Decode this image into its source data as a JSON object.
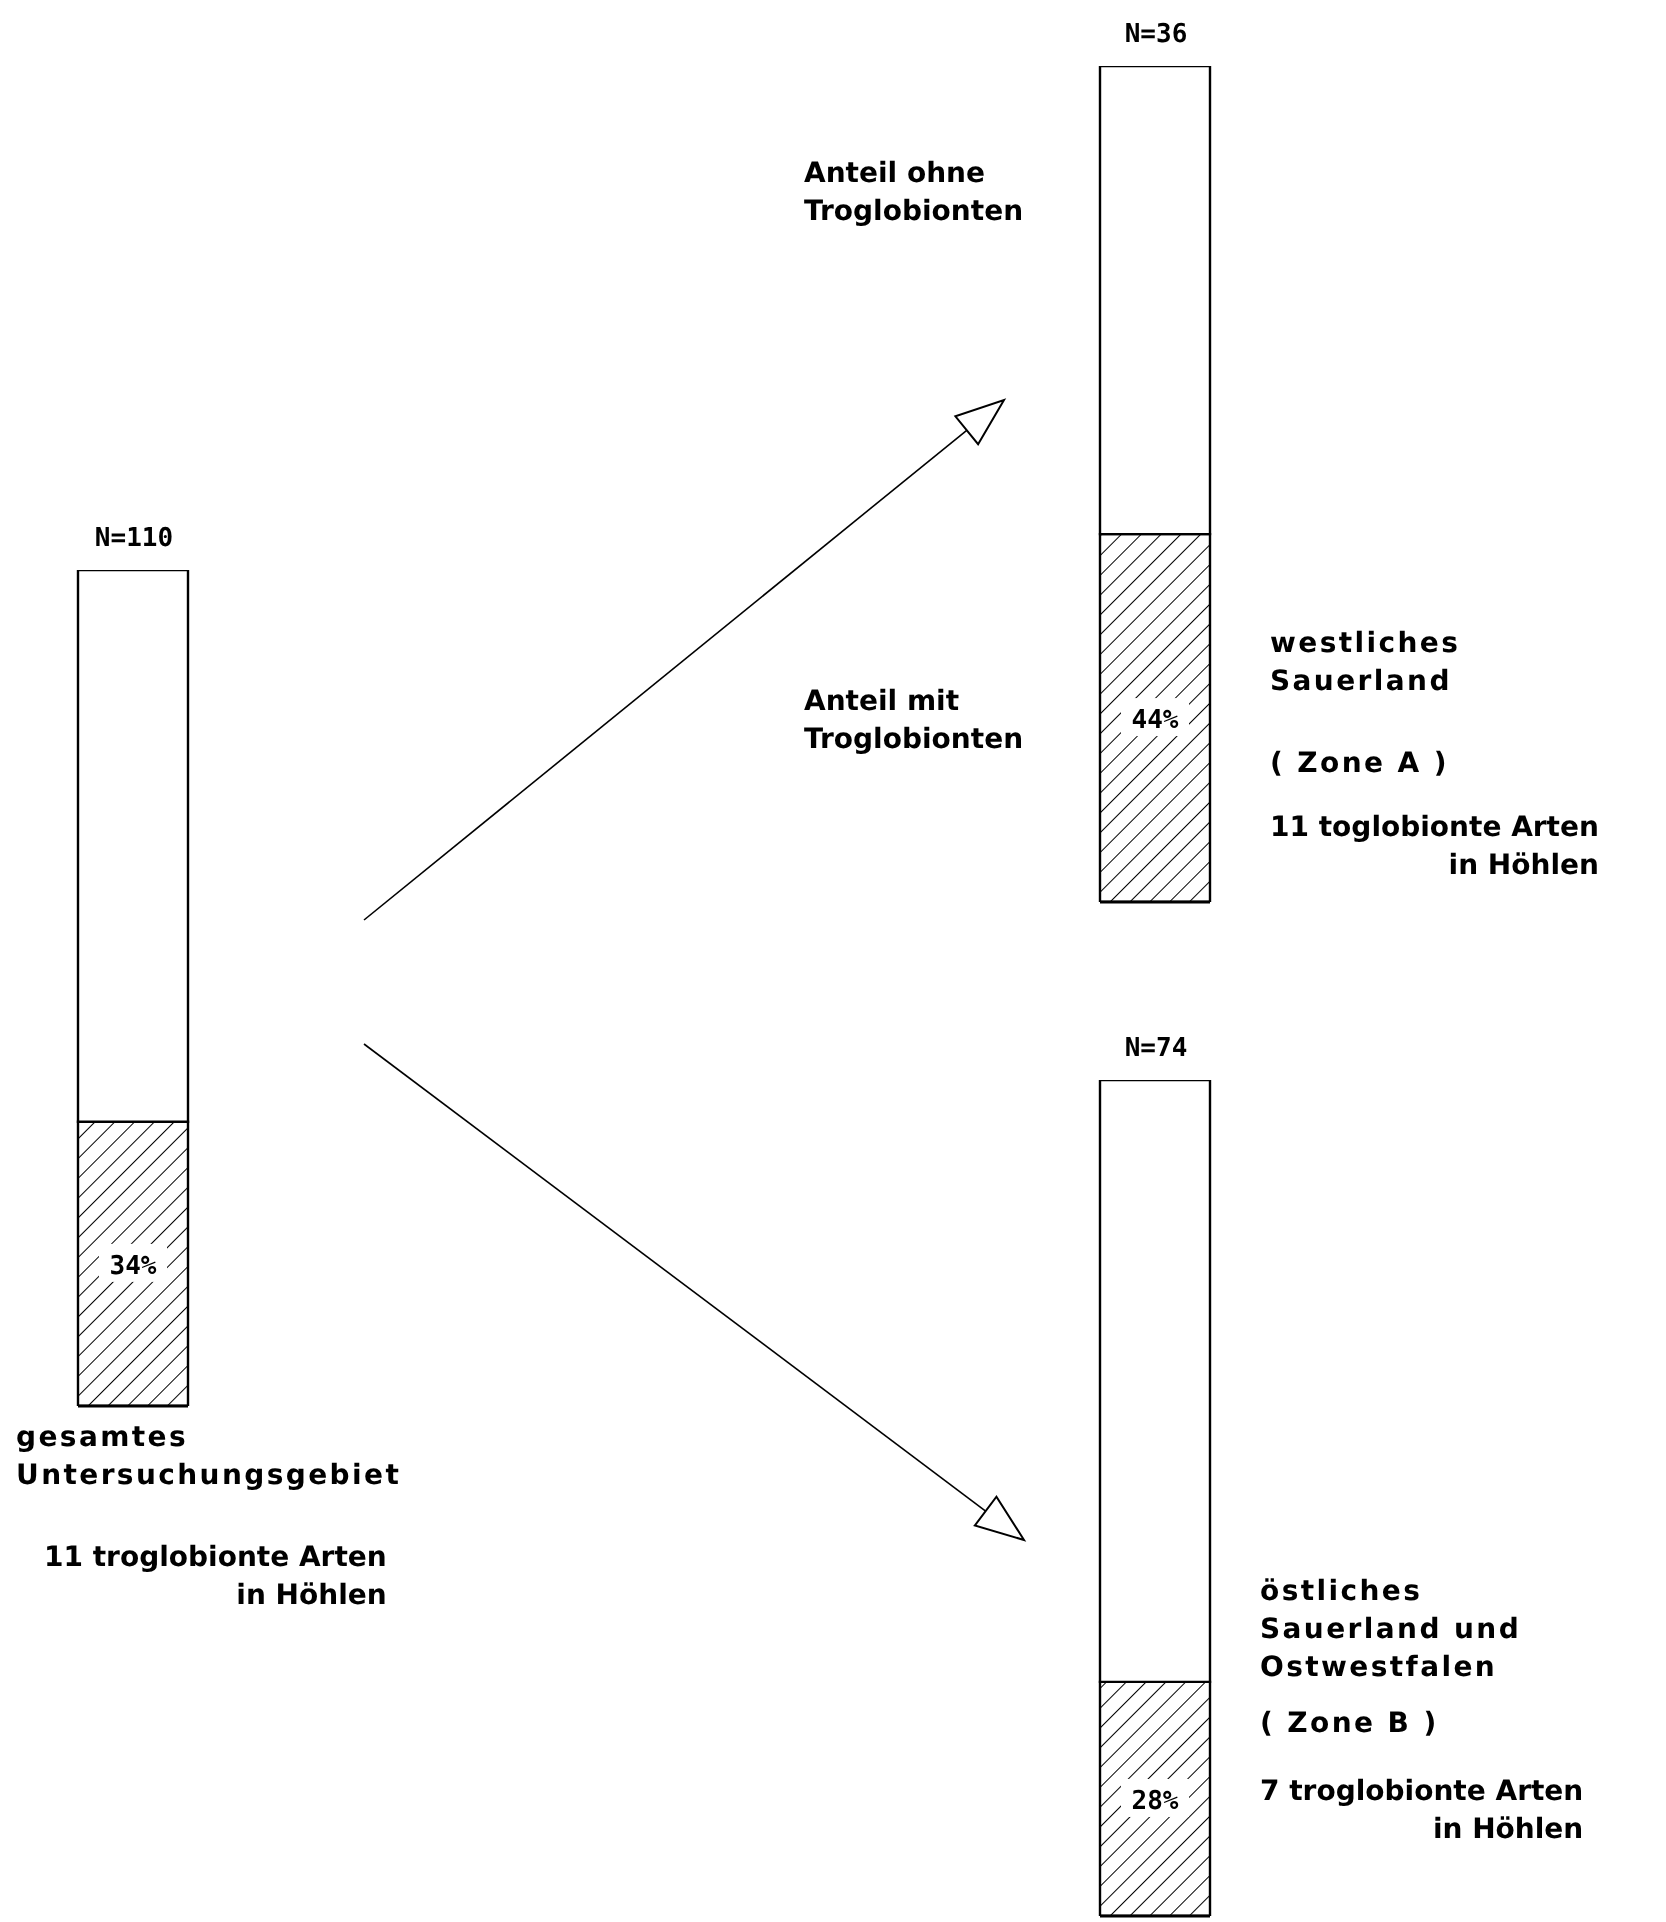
{
  "chart_data": [
    {
      "type": "bar",
      "title": "N=110",
      "stacked": true,
      "categories": [
        null
      ],
      "ylim": [
        0,
        100
      ],
      "tick_labels": false,
      "series": [
        {
          "color": "#000000",
          "values": [
            34
          ],
          "value_labels": [
            "34%"
          ]
        },
        {
          "color": "#ffffff",
          "values": [
            66
          ]
        }
      ],
      "annotations": [
        "gesamtes\nUntersuchungsgebiet",
        "11 troglobionte Arten\nin Höhlen"
      ]
    },
    {
      "type": "bar",
      "title": "N=36",
      "stacked": true,
      "categories": [
        null
      ],
      "ylim": [
        0,
        100
      ],
      "tick_labels": false,
      "series": [
        {
          "name": "Anteil mit\nTroglobionten",
          "color": "#000000",
          "values": [
            44
          ],
          "value_labels": [
            "44%"
          ]
        },
        {
          "name": "Anteil ohne\nTroglobionten",
          "color": "#ffffff",
          "values": [
            56
          ]
        }
      ],
      "annotations": [
        "westliches\nSauerland",
        "( Zone A )",
        "11 toglobionte Arten\nin Höhlen"
      ]
    },
    {
      "type": "bar",
      "title": "N=74",
      "stacked": true,
      "categories": [
        null
      ],
      "ylim": [
        0,
        100
      ],
      "tick_labels": false,
      "series": [
        {
          "color": "#000000",
          "values": [
            28
          ],
          "value_labels": [
            "28%"
          ]
        },
        {
          "color": "#ffffff",
          "values": [
            72
          ]
        }
      ],
      "annotations": [
        "östliches\nSauerland und\nOstwestfalen",
        "( Zone B )",
        "7 troglobionte Arten\nin Höhlen"
      ]
    }
  ]
}
